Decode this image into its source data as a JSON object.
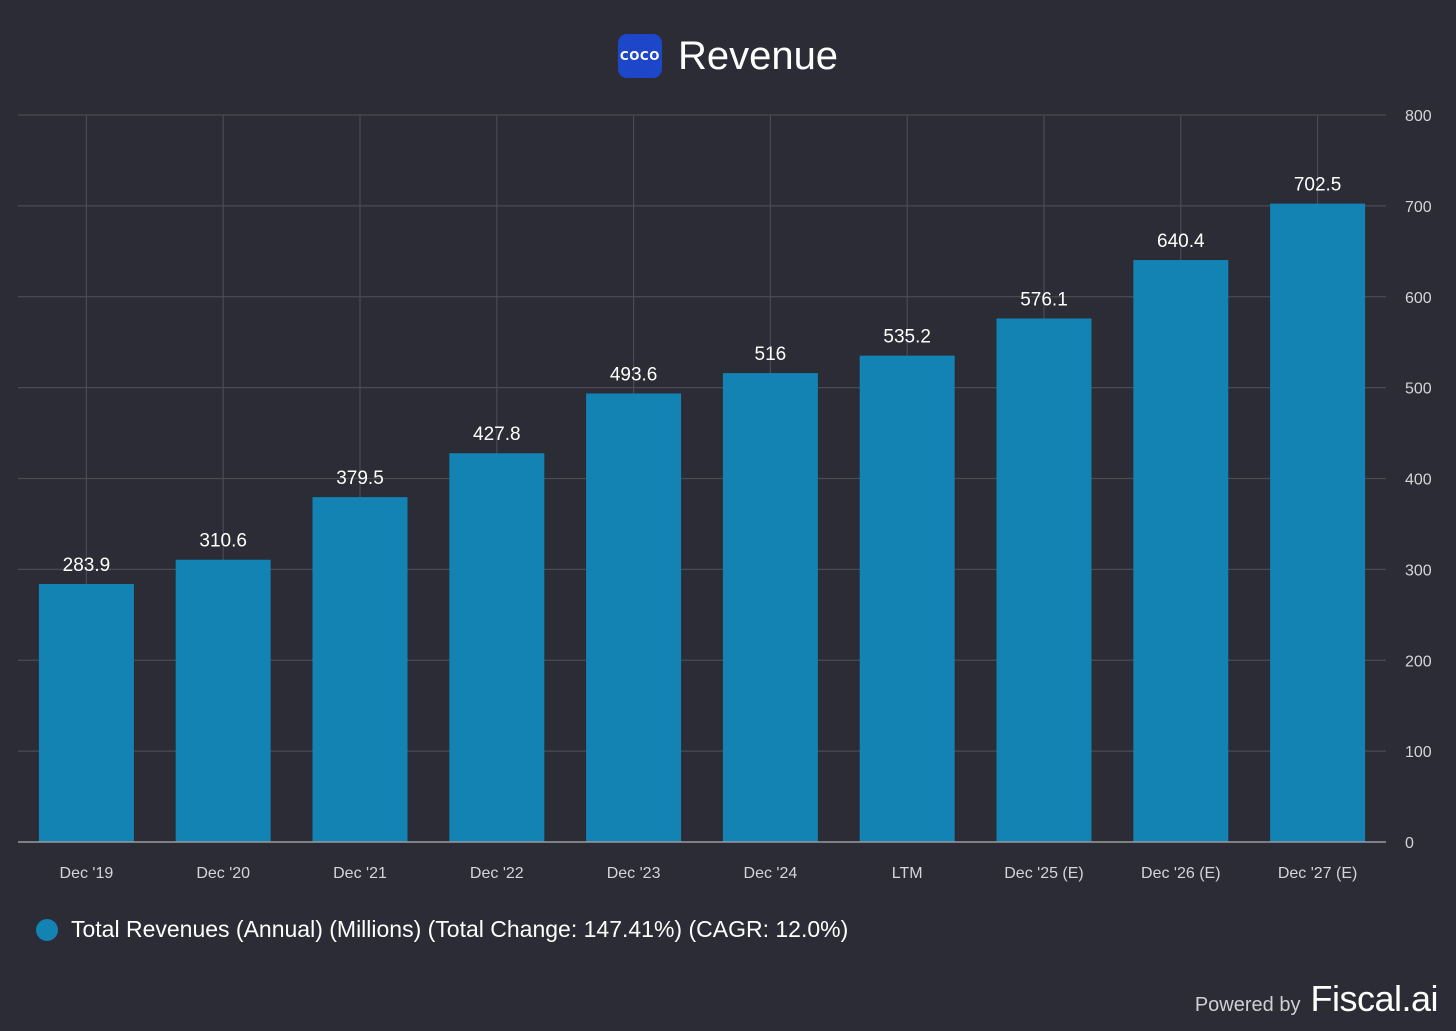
{
  "header": {
    "logo_text": "COCO",
    "title": "Revenue"
  },
  "chart_data": {
    "type": "bar",
    "categories": [
      "Dec '19",
      "Dec '20",
      "Dec '21",
      "Dec '22",
      "Dec '23",
      "Dec '24",
      "LTM",
      "Dec '25 (E)",
      "Dec '26 (E)",
      "Dec '27 (E)"
    ],
    "values": [
      283.9,
      310.6,
      379.5,
      427.8,
      493.6,
      516,
      535.2,
      576.1,
      640.4,
      702.5
    ],
    "data_labels": [
      "283.9",
      "310.6",
      "379.5",
      "427.8",
      "493.6",
      "516",
      "535.2",
      "576.1",
      "640.4",
      "702.5"
    ],
    "ylim": [
      0,
      800
    ],
    "yticks": [
      0,
      100,
      200,
      300,
      400,
      500,
      600,
      700,
      800
    ],
    "y_axis_side": "right",
    "grid": true,
    "bar_color": "#1283b2",
    "series": [
      {
        "name": "Total Revenues (Annual) (Millions) (Total Change: 147.41%) (CAGR: 12.0%)"
      }
    ],
    "legend_position": "bottom-left"
  },
  "colors": {
    "background": "#2b2c35",
    "grid": "#4a4b55",
    "axis_text": "#d4d5da",
    "label_text": "#ffffff"
  },
  "footer": {
    "powered_by": "Powered by",
    "brand": "Fiscal.ai"
  }
}
